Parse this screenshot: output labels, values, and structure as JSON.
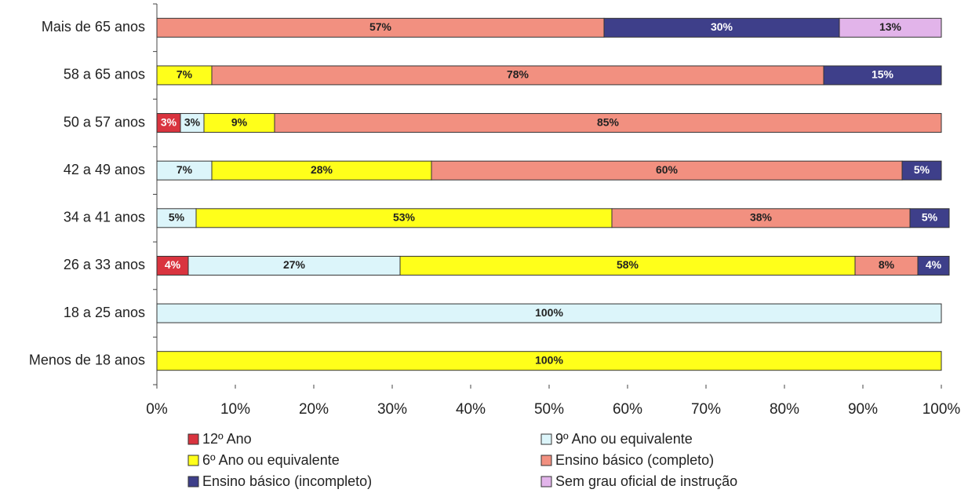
{
  "chart_data": {
    "type": "stacked_bar_horizontal",
    "categories": [
      "Mais de 65 anos",
      "58 a 65 anos",
      "50 a 57 anos",
      "42 a 49 anos",
      "34 a 41 anos",
      "26 a 33 anos",
      "18 a 25 anos",
      "Menos de 18 anos"
    ],
    "series": [
      {
        "name": "12º Ano",
        "color": "#d9343f",
        "values": [
          null,
          null,
          3,
          null,
          null,
          4,
          null,
          null
        ],
        "value_labels": [
          null,
          null,
          "3%",
          null,
          null,
          "4%",
          null,
          null
        ]
      },
      {
        "name": "9º Ano ou equivalente",
        "color": "#dcf5fa",
        "values": [
          null,
          null,
          3,
          7,
          5,
          27,
          100,
          null
        ],
        "value_labels": [
          null,
          null,
          "3%",
          "7%",
          "5%",
          "27%",
          "100%",
          null
        ]
      },
      {
        "name": "6º Ano ou equivalente",
        "color": "#ffff1a",
        "values": [
          null,
          7,
          9,
          28,
          53,
          58,
          null,
          100
        ],
        "value_labels": [
          null,
          "7%",
          "9%",
          "28%",
          "53%",
          "58%",
          null,
          "100%"
        ]
      },
      {
        "name": "Ensino básico (completo)",
        "color": "#f29080",
        "values": [
          57,
          78,
          85,
          60,
          38,
          8,
          null,
          null
        ],
        "value_labels": [
          "57%",
          "78%",
          "85%",
          "60%",
          "38%",
          "8%",
          null,
          null
        ]
      },
      {
        "name": "Ensino básico (incompleto)",
        "color": "#3e3f8a",
        "values": [
          30,
          15,
          null,
          5,
          5,
          4,
          null,
          null
        ],
        "value_labels": [
          "30%",
          "15%",
          null,
          "5%",
          "5%",
          "4%",
          null,
          null
        ]
      },
      {
        "name": "Sem grau oficial de instrução",
        "color": "#e2b4ea",
        "values": [
          13,
          null,
          null,
          null,
          null,
          null,
          null,
          null
        ],
        "value_labels": [
          "13%",
          null,
          null,
          null,
          null,
          null,
          null,
          null
        ]
      }
    ],
    "xlim": [
      0,
      100
    ],
    "xticks": [
      {
        "value": 0,
        "label": "0%"
      },
      {
        "value": 10,
        "label": "10%"
      },
      {
        "value": 20,
        "label": "20%"
      },
      {
        "value": 30,
        "label": "30%"
      },
      {
        "value": 40,
        "label": "40%"
      },
      {
        "value": 50,
        "label": "50%"
      },
      {
        "value": 60,
        "label": "60%"
      },
      {
        "value": 70,
        "label": "70%"
      },
      {
        "value": 80,
        "label": "80%"
      },
      {
        "value": 90,
        "label": "90%"
      },
      {
        "value": 100,
        "label": "100%"
      }
    ],
    "legend": "bottom"
  }
}
